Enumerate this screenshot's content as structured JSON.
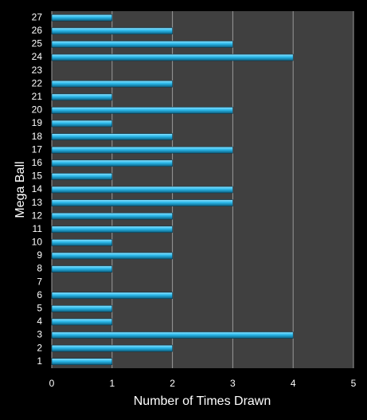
{
  "chart_data": {
    "type": "hbar",
    "xlabel": "Number of Times Drawn",
    "ylabel": "Mega Ball",
    "categories": [
      "1",
      "2",
      "3",
      "4",
      "5",
      "6",
      "7",
      "8",
      "9",
      "10",
      "11",
      "12",
      "13",
      "14",
      "15",
      "16",
      "17",
      "18",
      "19",
      "20",
      "21",
      "22",
      "23",
      "24",
      "25",
      "26",
      "27"
    ],
    "values": [
      1,
      2,
      4,
      1,
      1,
      2,
      0,
      1,
      2,
      1,
      2,
      2,
      3,
      3,
      1,
      2,
      3,
      2,
      1,
      3,
      1,
      2,
      0,
      4,
      3,
      2,
      1
    ],
    "color": "#2ab8ea",
    "xlim": [
      0,
      5
    ],
    "xticks": [
      0,
      1,
      2,
      3,
      4,
      5
    ],
    "grid": true
  }
}
